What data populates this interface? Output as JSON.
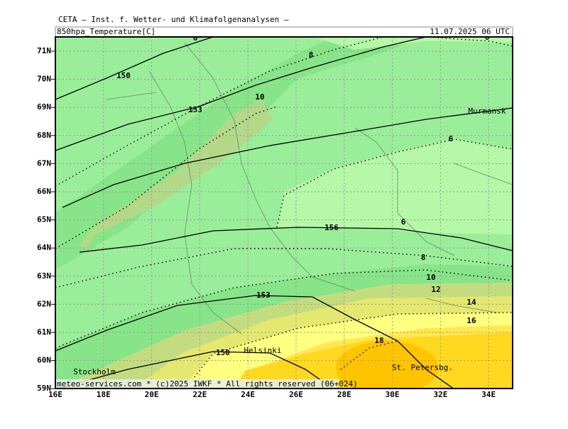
{
  "header": {
    "title": "CETA — Inst. f. Wetter- und Klimafolgenanalysen —",
    "field": "850hpa_Temperature[C]",
    "valid_time": "11.07.2025 06 UTC"
  },
  "map": {
    "lat_labels": [
      "71N",
      "70N",
      "69N",
      "68N",
      "67N",
      "66N",
      "65N",
      "64N",
      "63N",
      "62N",
      "61N",
      "60N",
      "59N"
    ],
    "lon_labels": [
      "16E",
      "18E",
      "20E",
      "22E",
      "24E",
      "26E",
      "28E",
      "30E",
      "32E",
      "34E"
    ],
    "contour_labels": [
      "6",
      "6",
      "8",
      "10",
      "6",
      "6",
      "8",
      "10",
      "12",
      "14",
      "16",
      "18",
      "150",
      "153",
      "156",
      "153",
      "150"
    ],
    "places": [
      "Murmansk",
      "Helsinki",
      "Stockholm",
      "St. Petersbg."
    ]
  },
  "footer": "meteo-services.com * (c)2025 IWKF * All rights reserved (06+024)"
}
